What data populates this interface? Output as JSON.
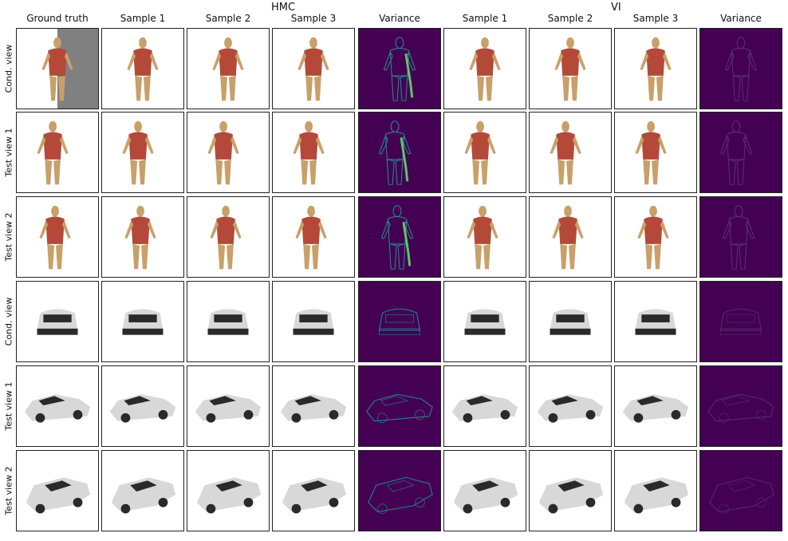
{
  "groups": {
    "hmc": "HMC",
    "vi": "VI"
  },
  "columns": [
    "Ground truth",
    "Sample 1",
    "Sample 2",
    "Sample 3",
    "Variance",
    "Sample 1",
    "Sample 2",
    "Sample 3",
    "Variance"
  ],
  "rows": [
    "Cond. view",
    "Test view 1",
    "Test view 2",
    "Cond. view",
    "Test view 1",
    "Test view 2"
  ],
  "colors": {
    "body_red": "#b4493a",
    "skin": "#c9a06a",
    "car_light": "#d8d8d8",
    "car_dark": "#2a2a2a",
    "variance_bg": "#440154",
    "variance_hi": "#5ec962",
    "variance_mid": "#21918c"
  }
}
